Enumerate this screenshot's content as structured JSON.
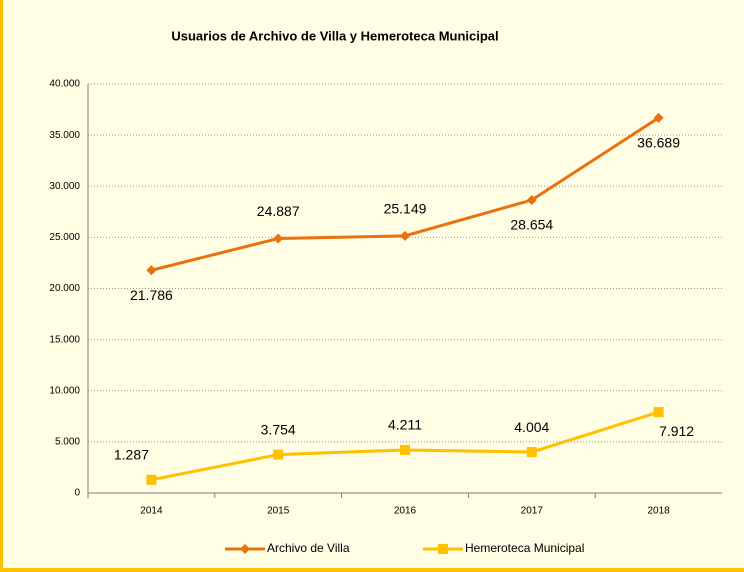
{
  "chart_data": {
    "type": "line",
    "title": "Usuarios de Archivo de Villa y Hemeroteca Municipal",
    "categories": [
      "2014",
      "2015",
      "2016",
      "2017",
      "2018"
    ],
    "series": [
      {
        "name": "Archivo de Villa",
        "color": "#e8720f",
        "marker": "diamond",
        "values": [
          21786,
          24887,
          25149,
          28654,
          36689
        ],
        "value_labels": [
          "21.786",
          "24.887",
          "25.149",
          "28.654",
          "36.689"
        ]
      },
      {
        "name": "Hemeroteca Municipal",
        "color": "#ffc000",
        "marker": "square",
        "values": [
          1287,
          3754,
          4211,
          4004,
          7912
        ],
        "value_labels": [
          "1.287",
          "3.754",
          "4.211",
          "4.004",
          "7.912"
        ]
      }
    ],
    "ylim": [
      0,
      40000
    ],
    "yticks": [
      {
        "value": 0,
        "label": "0"
      },
      {
        "value": 5000,
        "label": "5.000"
      },
      {
        "value": 10000,
        "label": "10.000"
      },
      {
        "value": 15000,
        "label": "15.000"
      },
      {
        "value": 20000,
        "label": "20.000"
      },
      {
        "value": 25000,
        "label": "25.000"
      },
      {
        "value": 30000,
        "label": "30.000"
      },
      {
        "value": 35000,
        "label": "35.000"
      },
      {
        "value": 40000,
        "label": "40.000"
      }
    ],
    "grid": true,
    "legend": "bottom"
  }
}
